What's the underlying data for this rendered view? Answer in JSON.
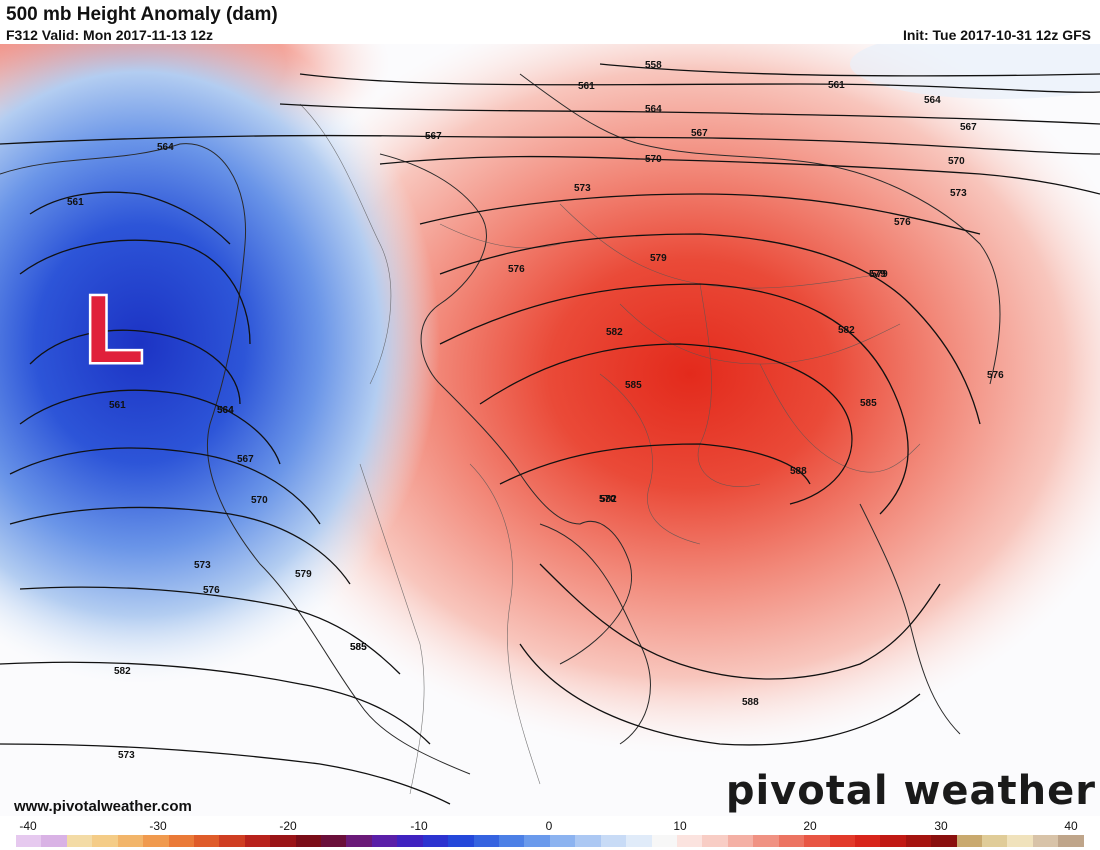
{
  "header": {
    "title": "500 mb Height Anomaly (dam)",
    "valid": "F312 Valid: Mon 2017-11-13 12z",
    "init": "Init: Tue 2017-10-31 12z GFS"
  },
  "map": {
    "low_marker": "L",
    "contour_labels": [
      "558",
      "561",
      "561",
      "564",
      "564",
      "567",
      "567",
      "570",
      "570",
      "573",
      "573",
      "576",
      "576",
      "579",
      "579",
      "582",
      "582",
      "585",
      "585",
      "588",
      "588",
      "561",
      "564",
      "567",
      "570",
      "573",
      "576",
      "579",
      "582",
      "585",
      "564",
      "561",
      "567",
      "570",
      "573",
      "576",
      "579",
      "582",
      "585",
      "564"
    ],
    "colors": {
      "low_deep": "#1e3fd0",
      "low_mid": "#4f7fe6",
      "low_light": "#c9ddf4",
      "high_deep": "#e02418",
      "high_mid": "#ee5a4a",
      "high_light": "#f9cfc7",
      "marker_red": "#e0203a"
    }
  },
  "footer": {
    "url": "www.pivotalweather.com",
    "brand": "pivotal weather"
  },
  "colorbar": {
    "ticks": [
      "-40",
      "-30",
      "-20",
      "-10",
      "0",
      "10",
      "20",
      "30",
      "40"
    ],
    "range": [
      -40,
      40
    ]
  }
}
